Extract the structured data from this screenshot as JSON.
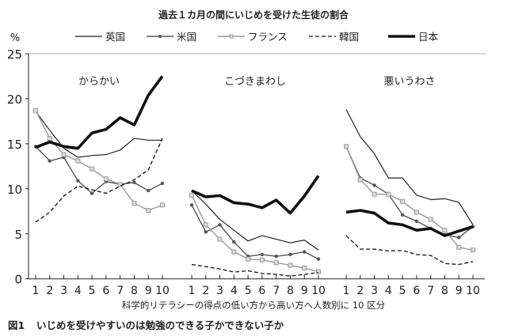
{
  "chart_data": {
    "type": "line",
    "title": "過去１カ月の間にいじめを受けた生徒の割合",
    "ylabel": "%",
    "xlabel": "科学的リテラシーの得点の低い方から高い方へ人数別に 10 区分",
    "caption_label": "図1",
    "caption": "いじめを受けやすいのは勉強のできる子かできない子か",
    "ylim": [
      0,
      25
    ],
    "yticks": [
      0,
      5,
      10,
      15,
      20,
      25
    ],
    "categories": [
      "1",
      "2",
      "3",
      "4",
      "5",
      "6",
      "7",
      "8",
      "9",
      "10"
    ],
    "grid": false,
    "legend_position": "top",
    "legend": [
      {
        "name": "英国",
        "style": "thin-solid",
        "color": "#222222"
      },
      {
        "name": "米国",
        "style": "solid-dot",
        "color": "#555555"
      },
      {
        "name": "フランス",
        "style": "solid-square",
        "color": "#999999"
      },
      {
        "name": "韓国",
        "style": "dashed",
        "color": "#111111"
      },
      {
        "name": "日本",
        "style": "thick-solid",
        "color": "#111111"
      }
    ],
    "panels": [
      {
        "title": "からかい",
        "series": [
          {
            "name": "英国",
            "values": [
              18.6,
              16.5,
              14.5,
              13.5,
              13.7,
              13.8,
              14.3,
              15.6,
              15.4,
              15.4
            ]
          },
          {
            "name": "米国",
            "values": [
              14.7,
              13.1,
              13.5,
              10.9,
              9.5,
              10.8,
              10.5,
              10.7,
              9.8,
              10.6
            ]
          },
          {
            "name": "フランス",
            "values": [
              18.7,
              15.6,
              13.8,
              13.1,
              12.2,
              11.1,
              10.5,
              8.4,
              7.6,
              8.2
            ]
          },
          {
            "name": "韓国",
            "values": [
              6.3,
              7.4,
              9.2,
              10.3,
              9.9,
              9.5,
              10.3,
              11.0,
              12.1,
              15.6
            ]
          },
          {
            "name": "日本",
            "values": [
              14.6,
              15.2,
              14.7,
              14.5,
              16.2,
              16.6,
              17.9,
              17.1,
              20.4,
              22.5
            ]
          }
        ]
      },
      {
        "title": "こづきまわし",
        "series": [
          {
            "name": "英国",
            "values": [
              9.8,
              8.3,
              6.6,
              5.4,
              4.2,
              4.8,
              4.4,
              4.0,
              4.3,
              3.2
            ]
          },
          {
            "name": "米国",
            "values": [
              8.2,
              5.2,
              6.0,
              4.1,
              2.5,
              2.7,
              2.5,
              2.7,
              3.0,
              2.2
            ]
          },
          {
            "name": "フランス",
            "values": [
              9.3,
              6.0,
              4.4,
              3.0,
              2.2,
              2.1,
              1.8,
              1.5,
              1.2,
              0.8
            ]
          },
          {
            "name": "韓国",
            "values": [
              1.6,
              1.35,
              1.1,
              0.75,
              0.9,
              0.6,
              0.5,
              0.3,
              0.5,
              0.7
            ]
          },
          {
            "name": "日本",
            "values": [
              9.8,
              9.1,
              9.25,
              8.45,
              8.3,
              7.9,
              8.75,
              7.3,
              9.2,
              11.45
            ]
          }
        ]
      },
      {
        "title": "悪いうわさ",
        "series": [
          {
            "name": "英国",
            "values": [
              18.8,
              15.8,
              13.9,
              11.2,
              11.2,
              9.3,
              8.8,
              8.9,
              8.5,
              6.0
            ]
          },
          {
            "name": "米国",
            "values": [
              14.7,
              11.2,
              10.4,
              9.4,
              7.1,
              6.4,
              5.6,
              4.9,
              4.6,
              5.8
            ]
          },
          {
            "name": "フランス",
            "values": [
              14.7,
              11.0,
              9.4,
              9.4,
              8.6,
              7.4,
              6.6,
              5.4,
              3.5,
              3.2
            ]
          },
          {
            "name": "韓国",
            "values": [
              4.8,
              3.3,
              3.3,
              3.1,
              3.15,
              2.7,
              2.6,
              1.7,
              1.6,
              1.9
            ]
          },
          {
            "name": "日本",
            "values": [
              7.4,
              7.6,
              7.3,
              6.2,
              6.0,
              5.4,
              5.6,
              4.8,
              5.3,
              5.8
            ]
          }
        ]
      }
    ]
  }
}
